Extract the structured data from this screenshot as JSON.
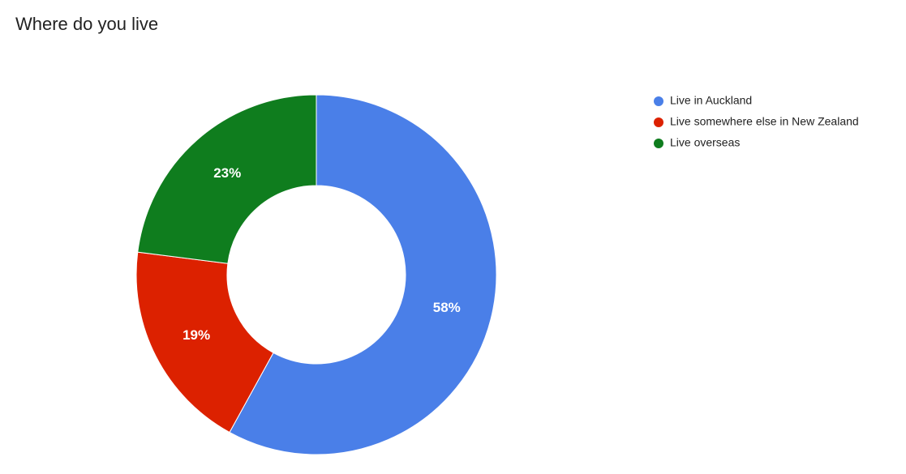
{
  "chart_data": {
    "type": "donut",
    "title": "Where do you live",
    "categories": [
      "Live in Auckland",
      "Live somewhere else in New Zealand",
      "Live overseas"
    ],
    "values": [
      58,
      19,
      23
    ],
    "value_labels": [
      "58%",
      "19%",
      "23%"
    ],
    "colors": [
      "#4a7fe8",
      "#dc2100",
      "#0f7d1e"
    ],
    "legend": "right"
  }
}
